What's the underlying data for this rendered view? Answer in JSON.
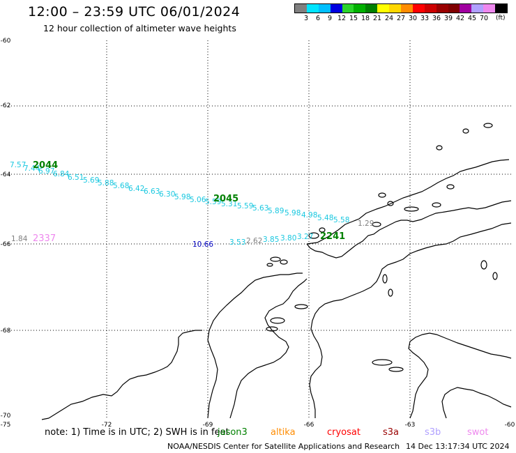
{
  "header": {
    "title": "12:00 – 23:59 UTC 06/01/2024",
    "subtitle": "12 hour collection of altimeter wave heights"
  },
  "colorbar": {
    "colors": [
      "#808080",
      "#00e5ff",
      "#00bfff",
      "#0000e0",
      "#2bd42b",
      "#00b000",
      "#008000",
      "#ffff00",
      "#ffd700",
      "#ff8c00",
      "#ff0000",
      "#cc0000",
      "#990000",
      "#800000",
      "#a000a0",
      "#b0a0ff",
      "#ee88ee",
      "#000000"
    ],
    "labels": [
      "3",
      "6",
      "9",
      "12",
      "15",
      "18",
      "21",
      "24",
      "27",
      "30",
      "33",
      "36",
      "39",
      "42",
      "45",
      "70"
    ],
    "unit": "(ft)"
  },
  "axes": {
    "lat_labels": [
      "-60",
      "-62",
      "-64",
      "-66",
      "-68",
      "-70"
    ],
    "lon_labels": [
      "-75",
      "-72",
      "-69",
      "-66",
      "-63",
      "-60"
    ]
  },
  "time_labels": [
    {
      "text": "2044",
      "color": "#008000"
    },
    {
      "text": "2045",
      "color": "#008000"
    },
    {
      "text": "2337",
      "color": "#ee88ee"
    },
    {
      "text": "2241",
      "color": "#008000"
    }
  ],
  "wave_labels": [
    {
      "text": "7.57",
      "color": "#1ac8e0"
    },
    {
      "text": "7.44",
      "color": "#1ac8e0"
    },
    {
      "text": "6.97",
      "color": "#1ac8e0"
    },
    {
      "text": "6.84",
      "color": "#1ac8e0"
    },
    {
      "text": "6.51",
      "color": "#1ac8e0"
    },
    {
      "text": "5.69",
      "color": "#1ac8e0"
    },
    {
      "text": "5.88",
      "color": "#1ac8e0"
    },
    {
      "text": "5.68",
      "color": "#1ac8e0"
    },
    {
      "text": "6.42",
      "color": "#1ac8e0"
    },
    {
      "text": "6.63",
      "color": "#1ac8e0"
    },
    {
      "text": "6.30",
      "color": "#1ac8e0"
    },
    {
      "text": "5.98",
      "color": "#1ac8e0"
    },
    {
      "text": "5.06",
      "color": "#1ac8e0"
    },
    {
      "text": "5.59",
      "color": "#1ac8e0"
    },
    {
      "text": "5.31",
      "color": "#1ac8e0"
    },
    {
      "text": "5.59",
      "color": "#1ac8e0"
    },
    {
      "text": "5.63",
      "color": "#1ac8e0"
    },
    {
      "text": "5.89",
      "color": "#1ac8e0"
    },
    {
      "text": "5.98",
      "color": "#1ac8e0"
    },
    {
      "text": "4.98",
      "color": "#1ac8e0"
    },
    {
      "text": "5.48",
      "color": "#1ac8e0"
    },
    {
      "text": "5.58",
      "color": "#1ac8e0"
    },
    {
      "text": "1.84",
      "color": "#808080"
    },
    {
      "text": "10.66",
      "color": "#0000c0"
    },
    {
      "text": "3.53",
      "color": "#1ac8e0"
    },
    {
      "text": "2.62",
      "color": "#808080"
    },
    {
      "text": "3.85",
      "color": "#1ac8e0"
    },
    {
      "text": "3.80",
      "color": "#1ac8e0"
    },
    {
      "text": "3.27",
      "color": "#1ac8e0"
    },
    {
      "text": "1.29",
      "color": "#808080"
    }
  ],
  "footer": {
    "note": "note:  1) Time is in UTC;  2) SWH is in feet",
    "satellites": [
      {
        "name": "jason3",
        "color": "#008000"
      },
      {
        "name": "altika",
        "color": "#ff8c00"
      },
      {
        "name": "cryosat",
        "color": "#ff0000"
      },
      {
        "name": "s3a",
        "color": "#990000"
      },
      {
        "name": "s3b",
        "color": "#b0a0ff"
      },
      {
        "name": "swot",
        "color": "#ee88ee"
      }
    ],
    "credit": "NOAA/NESDIS Center for Satellite Applications and Research",
    "timestamp": "14 Dec 13:17:34 UTC 2024"
  }
}
